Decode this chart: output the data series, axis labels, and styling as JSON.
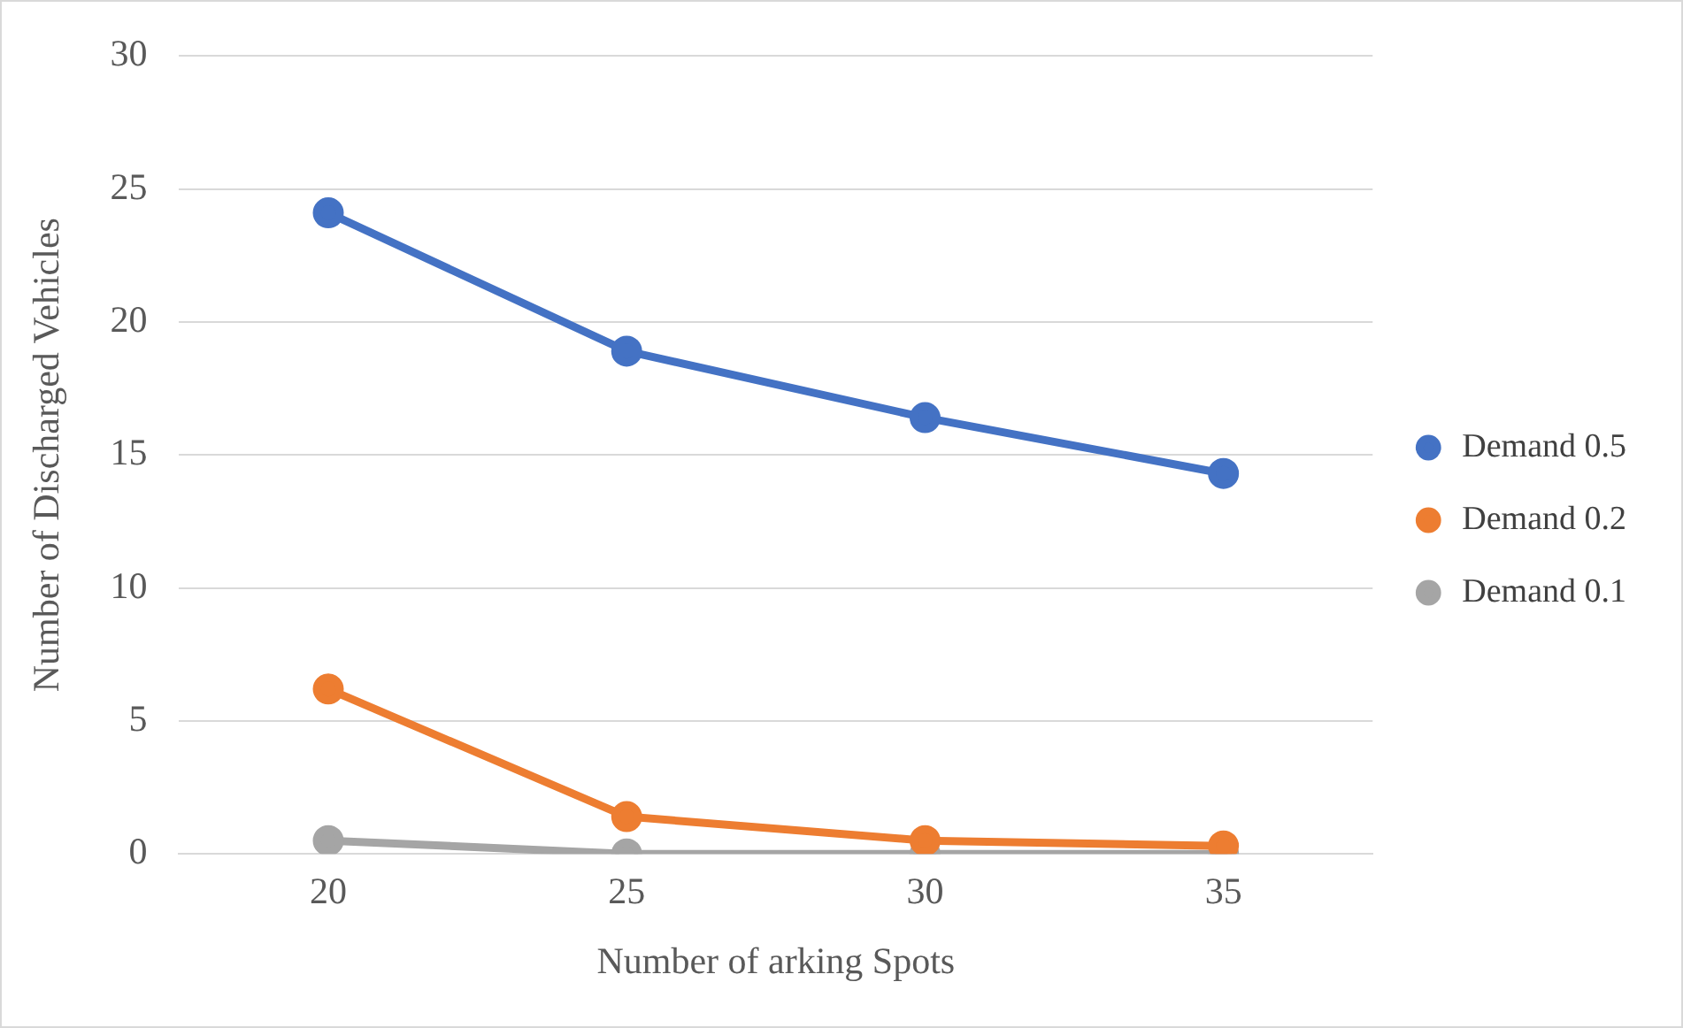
{
  "chart_data": {
    "type": "line",
    "xlabel": "Number of arking Spots",
    "ylabel": "Number of Discharged Vehicles",
    "categories": [
      "20",
      "25",
      "30",
      "35"
    ],
    "series": [
      {
        "name": "Demand 0.5",
        "color": "#4472c4",
        "values": [
          24.1,
          18.9,
          16.4,
          14.3
        ]
      },
      {
        "name": "Demand 0.2",
        "color": "#ed7d31",
        "values": [
          6.2,
          1.4,
          0.5,
          0.3
        ]
      },
      {
        "name": "Demand 0.1",
        "color": "#a5a5a5",
        "values": [
          0.5,
          0,
          0,
          0
        ]
      }
    ],
    "ylim": [
      0,
      30
    ],
    "yticks": [
      0,
      5,
      10,
      15,
      20,
      25,
      30
    ],
    "grid": "y",
    "legend": "right",
    "marker": "circle",
    "line_style": "solid"
  }
}
